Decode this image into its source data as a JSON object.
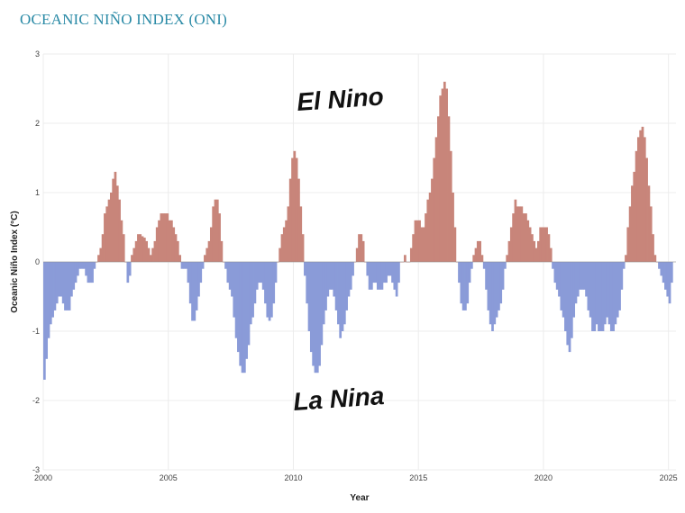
{
  "page": {
    "title": "OCEANIC NIÑO INDEX (ONI)"
  },
  "chart_data": {
    "type": "bar",
    "title": "OCEANIC NIÑO INDEX (ONI)",
    "xlabel": "Year",
    "ylabel": "Oceanic Niño Index (°C)",
    "xlim": [
      2000,
      2025.3
    ],
    "ylim": [
      -3,
      3
    ],
    "x_ticks": [
      "2000",
      "2005",
      "2010",
      "2015",
      "2020",
      "2025"
    ],
    "y_ticks": [
      "-3",
      "-2",
      "-1",
      "0",
      "1",
      "2",
      "3"
    ],
    "grid": true,
    "colors": {
      "positive": "#c8857a",
      "negative": "#8a9bd8"
    },
    "annotations": [
      "El Nino",
      "La Nina"
    ],
    "x": [
      2000.0,
      2000.083,
      2000.167,
      2000.25,
      2000.333,
      2000.417,
      2000.5,
      2000.583,
      2000.667,
      2000.75,
      2000.833,
      2000.917,
      2001.0,
      2001.083,
      2001.167,
      2001.25,
      2001.333,
      2001.417,
      2001.5,
      2001.583,
      2001.667,
      2001.75,
      2001.833,
      2001.917,
      2002.0,
      2002.083,
      2002.167,
      2002.25,
      2002.333,
      2002.417,
      2002.5,
      2002.583,
      2002.667,
      2002.75,
      2002.833,
      2002.917,
      2003.0,
      2003.083,
      2003.167,
      2003.25,
      2003.333,
      2003.417,
      2003.5,
      2003.583,
      2003.667,
      2003.75,
      2003.833,
      2003.917,
      2004.0,
      2004.083,
      2004.167,
      2004.25,
      2004.333,
      2004.417,
      2004.5,
      2004.583,
      2004.667,
      2004.75,
      2004.833,
      2004.917,
      2005.0,
      2005.083,
      2005.167,
      2005.25,
      2005.333,
      2005.417,
      2005.5,
      2005.583,
      2005.667,
      2005.75,
      2005.833,
      2005.917,
      2006.0,
      2006.083,
      2006.167,
      2006.25,
      2006.333,
      2006.417,
      2006.5,
      2006.583,
      2006.667,
      2006.75,
      2006.833,
      2006.917,
      2007.0,
      2007.083,
      2007.167,
      2007.25,
      2007.333,
      2007.417,
      2007.5,
      2007.583,
      2007.667,
      2007.75,
      2007.833,
      2007.917,
      2008.0,
      2008.083,
      2008.167,
      2008.25,
      2008.333,
      2008.417,
      2008.5,
      2008.583,
      2008.667,
      2008.75,
      2008.833,
      2008.917,
      2009.0,
      2009.083,
      2009.167,
      2009.25,
      2009.333,
      2009.417,
      2009.5,
      2009.583,
      2009.667,
      2009.75,
      2009.833,
      2009.917,
      2010.0,
      2010.083,
      2010.167,
      2010.25,
      2010.333,
      2010.417,
      2010.5,
      2010.583,
      2010.667,
      2010.75,
      2010.833,
      2010.917,
      2011.0,
      2011.083,
      2011.167,
      2011.25,
      2011.333,
      2011.417,
      2011.5,
      2011.583,
      2011.667,
      2011.75,
      2011.833,
      2011.917,
      2012.0,
      2012.083,
      2012.167,
      2012.25,
      2012.333,
      2012.417,
      2012.5,
      2012.583,
      2012.667,
      2012.75,
      2012.833,
      2012.917,
      2013.0,
      2013.083,
      2013.167,
      2013.25,
      2013.333,
      2013.417,
      2013.5,
      2013.583,
      2013.667,
      2013.75,
      2013.833,
      2013.917,
      2014.0,
      2014.083,
      2014.167,
      2014.25,
      2014.333,
      2014.417,
      2014.5,
      2014.583,
      2014.667,
      2014.75,
      2014.833,
      2014.917,
      2015.0,
      2015.083,
      2015.167,
      2015.25,
      2015.333,
      2015.417,
      2015.5,
      2015.583,
      2015.667,
      2015.75,
      2015.833,
      2015.917,
      2016.0,
      2016.083,
      2016.167,
      2016.25,
      2016.333,
      2016.417,
      2016.5,
      2016.583,
      2016.667,
      2016.75,
      2016.833,
      2016.917,
      2017.0,
      2017.083,
      2017.167,
      2017.25,
      2017.333,
      2017.417,
      2017.5,
      2017.583,
      2017.667,
      2017.75,
      2017.833,
      2017.917,
      2018.0,
      2018.083,
      2018.167,
      2018.25,
      2018.333,
      2018.417,
      2018.5,
      2018.583,
      2018.667,
      2018.75,
      2018.833,
      2018.917,
      2019.0,
      2019.083,
      2019.167,
      2019.25,
      2019.333,
      2019.417,
      2019.5,
      2019.583,
      2019.667,
      2019.75,
      2019.833,
      2019.917,
      2020.0,
      2020.083,
      2020.167,
      2020.25,
      2020.333,
      2020.417,
      2020.5,
      2020.583,
      2020.667,
      2020.75,
      2020.833,
      2020.917,
      2021.0,
      2021.083,
      2021.167,
      2021.25,
      2021.333,
      2021.417,
      2021.5,
      2021.583,
      2021.667,
      2021.75,
      2021.833,
      2021.917,
      2022.0,
      2022.083,
      2022.167,
      2022.25,
      2022.333,
      2022.417,
      2022.5,
      2022.583,
      2022.667,
      2022.75,
      2022.833,
      2022.917,
      2023.0,
      2023.083,
      2023.167,
      2023.25,
      2023.333,
      2023.417,
      2023.5,
      2023.583,
      2023.667,
      2023.75,
      2023.833,
      2023.917,
      2024.0,
      2024.083,
      2024.167,
      2024.25,
      2024.333,
      2024.417,
      2024.5,
      2024.583,
      2024.667,
      2024.75,
      2024.833,
      2024.917,
      2025.0,
      2025.083
    ],
    "values": [
      -1.7,
      -1.4,
      -1.1,
      -0.9,
      -0.8,
      -0.7,
      -0.6,
      -0.5,
      -0.5,
      -0.6,
      -0.7,
      -0.7,
      -0.7,
      -0.5,
      -0.4,
      -0.3,
      -0.2,
      -0.1,
      -0.1,
      -0.1,
      -0.2,
      -0.3,
      -0.3,
      -0.3,
      -0.1,
      0.0,
      0.1,
      0.2,
      0.4,
      0.7,
      0.8,
      0.9,
      1.0,
      1.2,
      1.3,
      1.1,
      0.9,
      0.6,
      0.4,
      0.0,
      -0.3,
      -0.2,
      0.1,
      0.2,
      0.3,
      0.4,
      0.4,
      0.37,
      0.35,
      0.3,
      0.2,
      0.1,
      0.2,
      0.3,
      0.5,
      0.6,
      0.7,
      0.7,
      0.7,
      0.7,
      0.6,
      0.6,
      0.5,
      0.4,
      0.3,
      0.1,
      -0.1,
      -0.1,
      -0.1,
      -0.3,
      -0.6,
      -0.85,
      -0.85,
      -0.7,
      -0.5,
      -0.3,
      -0.1,
      0.1,
      0.2,
      0.3,
      0.5,
      0.8,
      0.9,
      0.9,
      0.7,
      0.3,
      0.0,
      -0.1,
      -0.3,
      -0.4,
      -0.5,
      -0.8,
      -1.1,
      -1.3,
      -1.5,
      -1.6,
      -1.6,
      -1.4,
      -1.2,
      -0.9,
      -0.8,
      -0.6,
      -0.4,
      -0.3,
      -0.3,
      -0.4,
      -0.6,
      -0.8,
      -0.85,
      -0.8,
      -0.6,
      -0.3,
      0.0,
      0.2,
      0.4,
      0.5,
      0.6,
      0.8,
      1.2,
      1.5,
      1.6,
      1.5,
      1.2,
      0.8,
      0.4,
      -0.2,
      -0.6,
      -1.0,
      -1.3,
      -1.5,
      -1.6,
      -1.6,
      -1.5,
      -1.2,
      -0.9,
      -0.7,
      -0.5,
      -0.4,
      -0.4,
      -0.5,
      -0.7,
      -0.9,
      -1.1,
      -1.0,
      -0.9,
      -0.7,
      -0.5,
      -0.4,
      -0.2,
      0.0,
      0.2,
      0.4,
      0.4,
      0.3,
      0.0,
      -0.2,
      -0.4,
      -0.4,
      -0.3,
      -0.3,
      -0.4,
      -0.4,
      -0.4,
      -0.3,
      -0.3,
      -0.2,
      -0.2,
      -0.3,
      -0.4,
      -0.5,
      -0.3,
      0.0,
      0.0,
      0.1,
      0.0,
      0.0,
      0.2,
      0.4,
      0.6,
      0.6,
      0.6,
      0.5,
      0.5,
      0.7,
      0.9,
      1.0,
      1.2,
      1.5,
      1.8,
      2.1,
      2.4,
      2.5,
      2.6,
      2.5,
      2.1,
      1.6,
      1.0,
      0.5,
      0.0,
      -0.3,
      -0.6,
      -0.7,
      -0.7,
      -0.6,
      -0.3,
      -0.1,
      0.1,
      0.2,
      0.3,
      0.3,
      0.1,
      -0.1,
      -0.4,
      -0.7,
      -0.9,
      -1.0,
      -0.9,
      -0.8,
      -0.7,
      -0.6,
      -0.4,
      -0.1,
      0.1,
      0.3,
      0.5,
      0.7,
      0.9,
      0.8,
      0.8,
      0.8,
      0.7,
      0.7,
      0.6,
      0.5,
      0.4,
      0.3,
      0.2,
      0.3,
      0.5,
      0.5,
      0.5,
      0.5,
      0.4,
      0.2,
      -0.1,
      -0.3,
      -0.4,
      -0.5,
      -0.7,
      -0.8,
      -1.0,
      -1.2,
      -1.3,
      -1.1,
      -0.8,
      -0.6,
      -0.5,
      -0.4,
      -0.4,
      -0.4,
      -0.5,
      -0.7,
      -0.8,
      -1.0,
      -1.0,
      -0.9,
      -1.0,
      -1.0,
      -1.0,
      -0.9,
      -0.8,
      -0.9,
      -1.0,
      -1.0,
      -0.9,
      -0.8,
      -0.7,
      -0.4,
      -0.1,
      0.1,
      0.5,
      0.8,
      1.1,
      1.3,
      1.6,
      1.8,
      1.9,
      1.95,
      1.8,
      1.5,
      1.1,
      0.8,
      0.4,
      0.1,
      0.0,
      -0.1,
      -0.2,
      -0.3,
      -0.4,
      -0.5,
      -0.6,
      -0.3
    ]
  }
}
